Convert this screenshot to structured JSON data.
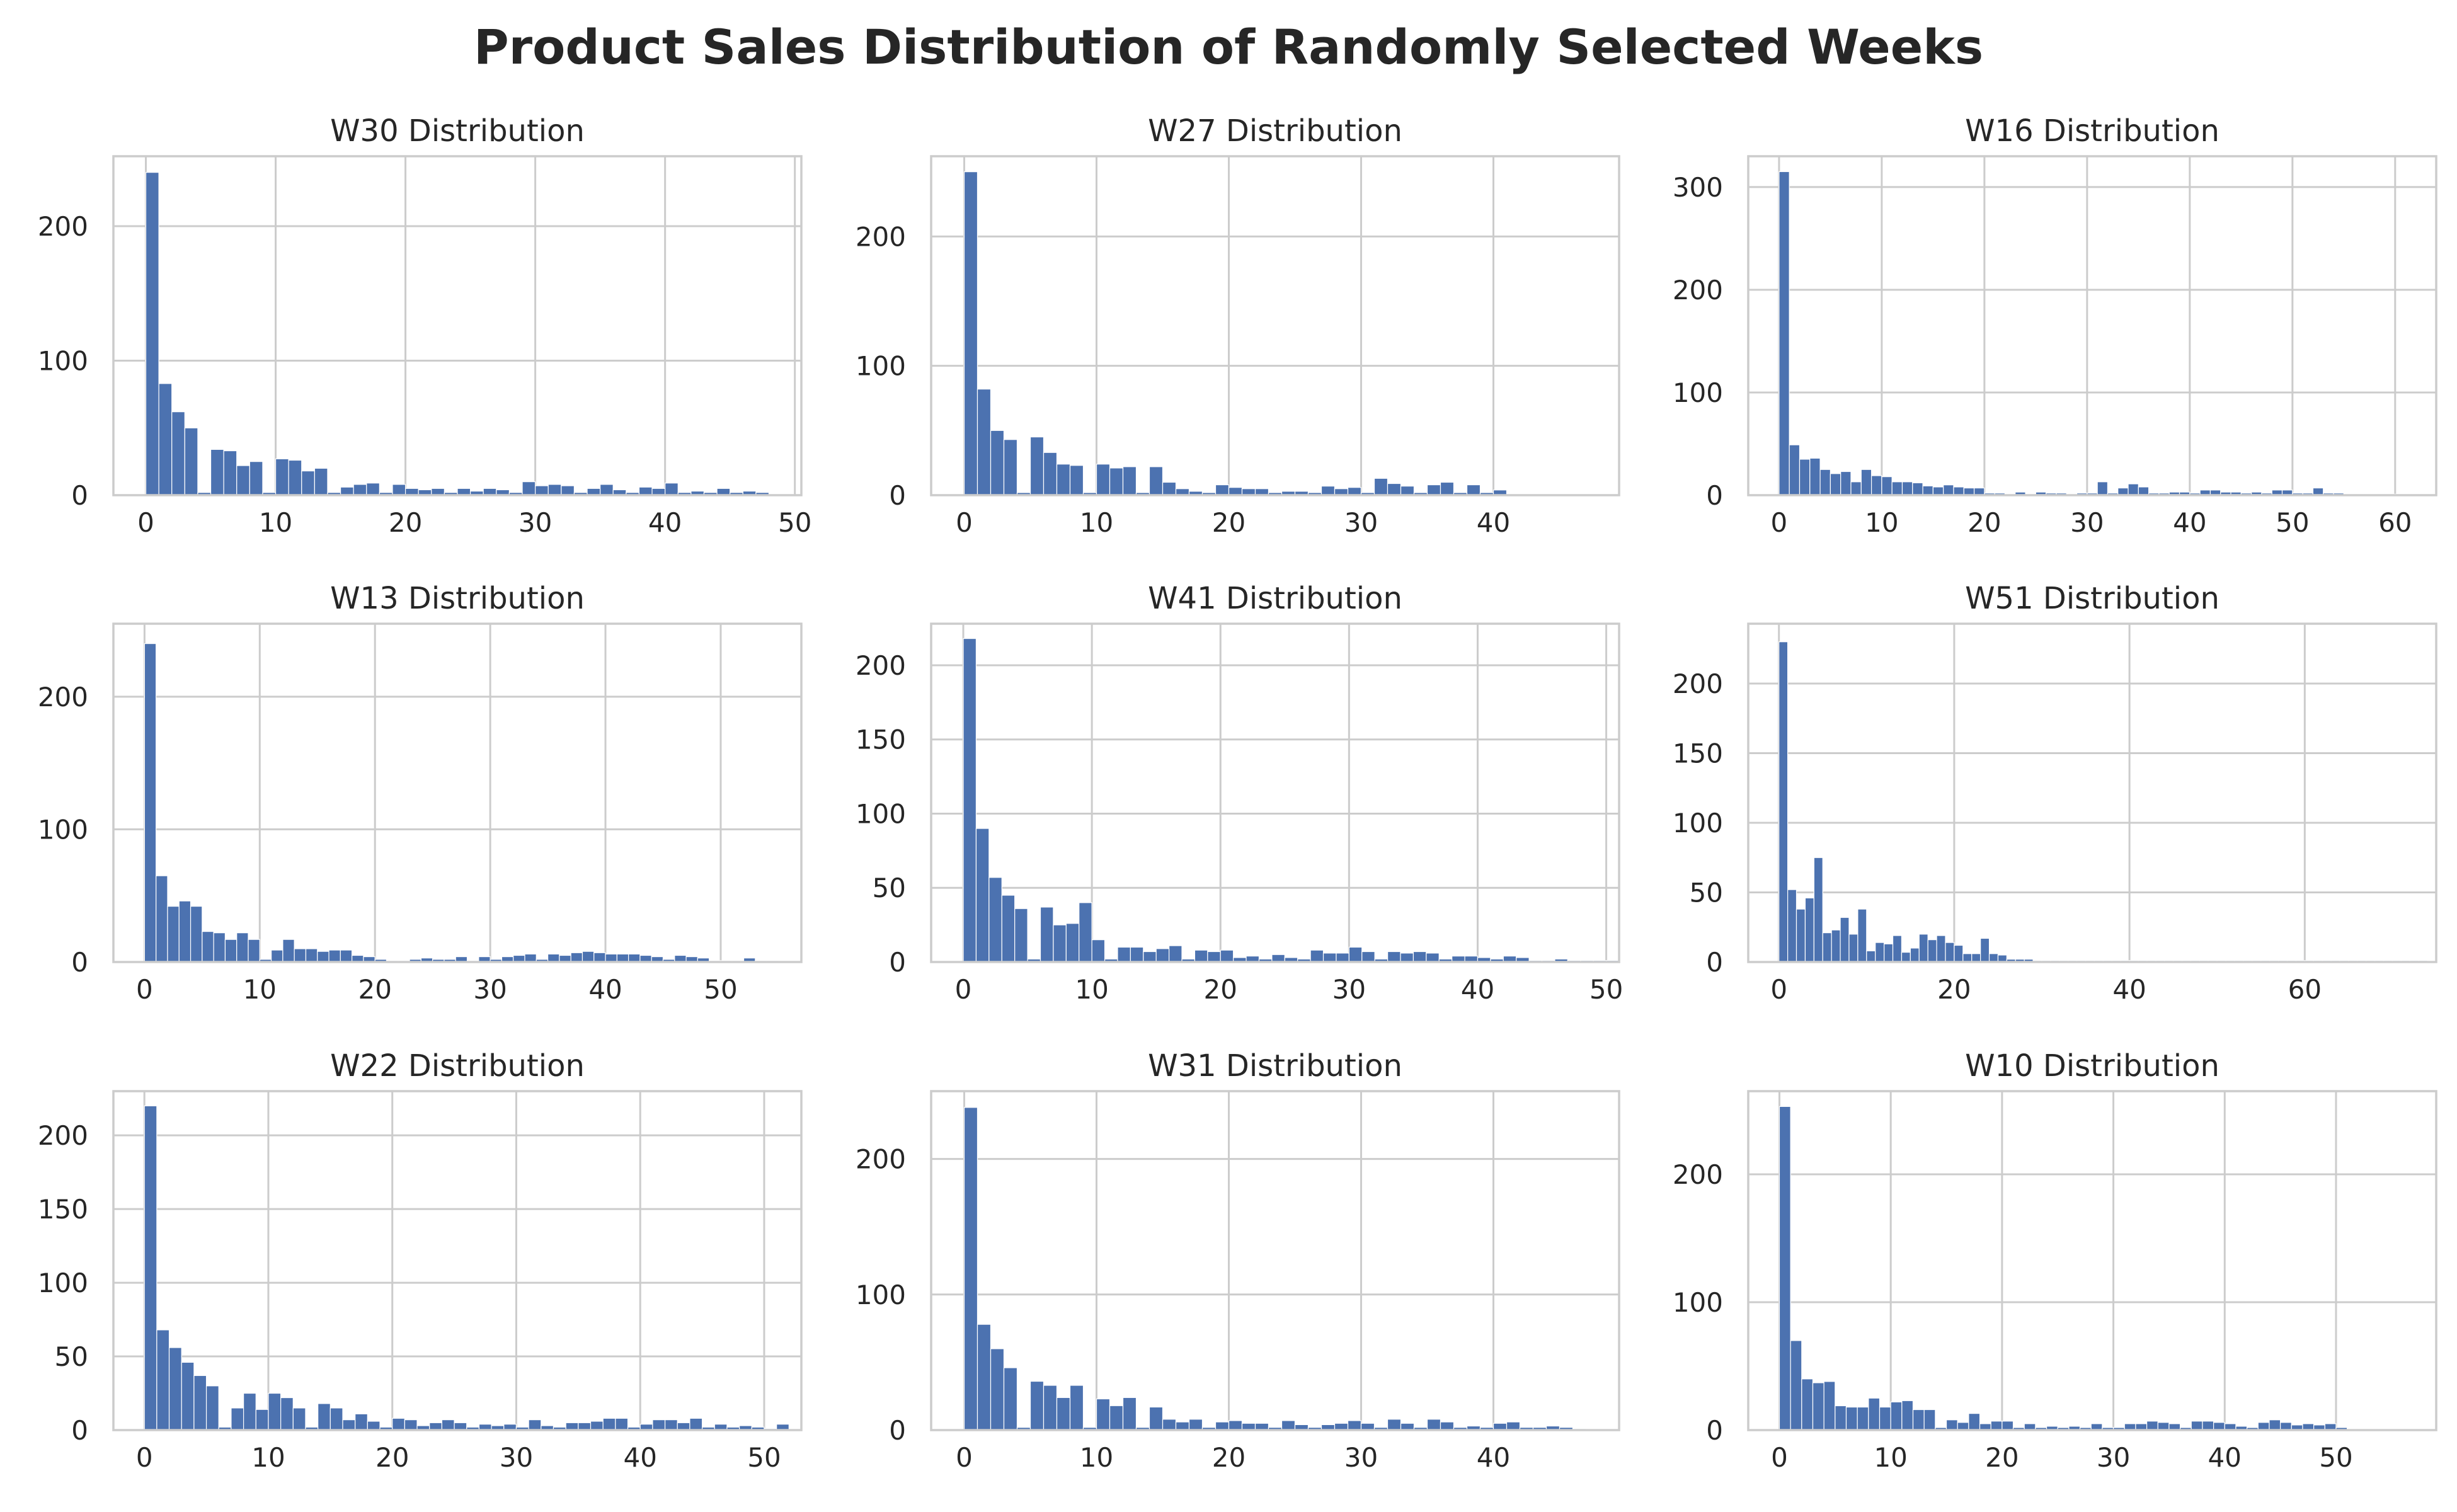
{
  "title": "Product Sales Distribution of Randomly Selected Weeks",
  "colors": {
    "bar": "#4c72b0",
    "grid": "#cccccc",
    "text": "#262626",
    "background": "#ffffff"
  },
  "chart_data": [
    {
      "type": "bar",
      "title": "W30 Distribution",
      "xlim": [
        -2.5,
        50.5
      ],
      "ylim": [
        0,
        252
      ],
      "grid": true,
      "xticks": [
        0,
        10,
        20,
        30,
        40,
        50
      ],
      "yticks": [
        0,
        100,
        200
      ],
      "x": [
        0,
        1,
        2,
        3,
        4,
        5,
        6,
        7,
        8,
        9,
        10,
        11,
        12,
        13,
        14,
        15,
        16,
        17,
        18,
        19,
        20,
        21,
        22,
        23,
        24,
        25,
        26,
        27,
        28,
        29,
        30,
        31,
        32,
        33,
        34,
        35,
        36,
        37,
        38,
        39,
        40,
        41,
        42,
        43,
        44,
        45,
        46,
        47
      ],
      "values": [
        240,
        83,
        62,
        50,
        2,
        34,
        33,
        22,
        25,
        2,
        27,
        26,
        18,
        20,
        2,
        6,
        8,
        9,
        2,
        8,
        5,
        4,
        5,
        2,
        5,
        3,
        5,
        4,
        2,
        10,
        7,
        8,
        7,
        2,
        5,
        8,
        4,
        2,
        6,
        5,
        9,
        2,
        3,
        2,
        5,
        2,
        3,
        2
      ]
    },
    {
      "type": "bar",
      "title": "W27 Distribution",
      "xlim": [
        -2.5,
        49.5
      ],
      "ylim": [
        0,
        262
      ],
      "grid": true,
      "xticks": [
        0,
        10,
        20,
        30,
        40
      ],
      "yticks": [
        0,
        100,
        200
      ],
      "x": [
        0,
        1,
        2,
        3,
        4,
        5,
        6,
        7,
        8,
        9,
        10,
        11,
        12,
        13,
        14,
        15,
        16,
        17,
        18,
        19,
        20,
        21,
        22,
        23,
        24,
        25,
        26,
        27,
        28,
        29,
        30,
        31,
        32,
        33,
        34,
        35,
        36,
        37,
        38,
        39,
        40
      ],
      "values": [
        250,
        82,
        50,
        43,
        2,
        45,
        33,
        24,
        23,
        2,
        24,
        21,
        22,
        2,
        22,
        10,
        5,
        3,
        2,
        8,
        6,
        5,
        5,
        2,
        3,
        3,
        2,
        7,
        5,
        6,
        2,
        13,
        9,
        7,
        2,
        8,
        10,
        2,
        8,
        2,
        4
      ]
    },
    {
      "type": "bar",
      "title": "W16 Distribution",
      "xlim": [
        -3,
        64
      ],
      "ylim": [
        0,
        330
      ],
      "grid": true,
      "xticks": [
        0,
        10,
        20,
        30,
        40,
        50,
        60
      ],
      "yticks": [
        0,
        100,
        200,
        300
      ],
      "x": [
        0,
        1,
        2,
        3,
        4,
        5,
        6,
        7,
        8,
        9,
        10,
        11,
        12,
        13,
        14,
        15,
        16,
        17,
        18,
        19,
        20,
        21,
        22,
        23,
        24,
        25,
        26,
        27,
        28,
        29,
        30,
        31,
        32,
        33,
        34,
        35,
        36,
        37,
        38,
        39,
        40,
        41,
        42,
        43,
        44,
        45,
        46,
        47,
        48,
        49,
        50,
        51,
        52,
        53,
        54,
        55,
        56,
        57,
        58,
        59,
        60,
        61
      ],
      "values": [
        315,
        49,
        35,
        36,
        25,
        21,
        23,
        13,
        25,
        19,
        18,
        13,
        13,
        12,
        9,
        8,
        10,
        8,
        7,
        7,
        2,
        2,
        1,
        3,
        1,
        3,
        2,
        2,
        1,
        2,
        2,
        13,
        2,
        7,
        11,
        8,
        2,
        2,
        3,
        3,
        2,
        5,
        5,
        3,
        3,
        2,
        3,
        2,
        5,
        5,
        2,
        2,
        7,
        2,
        2,
        1,
        1,
        1,
        1,
        1,
        1,
        1
      ]
    },
    {
      "type": "bar",
      "title": "W13 Distribution",
      "xlim": [
        -2.7,
        57
      ],
      "ylim": [
        0,
        255
      ],
      "grid": true,
      "xticks": [
        0,
        10,
        20,
        30,
        40,
        50
      ],
      "yticks": [
        0,
        100,
        200
      ],
      "x": [
        0,
        1,
        2,
        3,
        4,
        5,
        6,
        7,
        8,
        9,
        10,
        11,
        12,
        13,
        14,
        15,
        16,
        17,
        18,
        19,
        20,
        21,
        22,
        23,
        24,
        25,
        26,
        27,
        28,
        29,
        30,
        31,
        32,
        33,
        34,
        35,
        36,
        37,
        38,
        39,
        40,
        41,
        42,
        43,
        44,
        45,
        46,
        47,
        48,
        49,
        50,
        51,
        52,
        53,
        54
      ],
      "values": [
        240,
        65,
        42,
        46,
        42,
        23,
        22,
        17,
        22,
        17,
        2,
        9,
        17,
        10,
        10,
        8,
        9,
        9,
        5,
        4,
        2,
        1,
        1,
        2,
        3,
        2,
        2,
        4,
        1,
        4,
        2,
        4,
        5,
        6,
        2,
        6,
        5,
        7,
        8,
        7,
        6,
        6,
        6,
        5,
        4,
        2,
        5,
        4,
        3,
        1,
        1,
        1,
        3,
        1,
        1
      ]
    },
    {
      "type": "bar",
      "title": "W41 Distribution",
      "xlim": [
        -2.5,
        51
      ],
      "ylim": [
        0,
        228
      ],
      "grid": true,
      "xticks": [
        0,
        10,
        20,
        30,
        40,
        50
      ],
      "yticks": [
        0,
        50,
        100,
        150,
        200
      ],
      "x": [
        0,
        1,
        2,
        3,
        4,
        5,
        6,
        7,
        8,
        9,
        10,
        11,
        12,
        13,
        14,
        15,
        16,
        17,
        18,
        19,
        20,
        21,
        22,
        23,
        24,
        25,
        26,
        27,
        28,
        29,
        30,
        31,
        32,
        33,
        34,
        35,
        36,
        37,
        38,
        39,
        40,
        41,
        42,
        43,
        44,
        45,
        46,
        47,
        48,
        49,
        50
      ],
      "values": [
        218,
        90,
        57,
        45,
        36,
        2,
        37,
        25,
        26,
        40,
        15,
        2,
        10,
        10,
        7,
        9,
        11,
        2,
        8,
        7,
        8,
        3,
        4,
        2,
        5,
        3,
        2,
        8,
        6,
        6,
        10,
        7,
        2,
        7,
        6,
        7,
        6,
        2,
        4,
        4,
        3,
        2,
        4,
        3,
        1,
        1,
        2,
        1,
        1,
        1,
        1
      ]
    },
    {
      "type": "bar",
      "title": "W51 Distribution",
      "xlim": [
        -3.5,
        75
      ],
      "ylim": [
        0,
        243
      ],
      "grid": true,
      "xticks": [
        0,
        20,
        40,
        60
      ],
      "yticks": [
        0,
        50,
        100,
        150,
        200
      ],
      "x": [
        0,
        1,
        2,
        3,
        4,
        5,
        6,
        7,
        8,
        9,
        10,
        11,
        12,
        13,
        14,
        15,
        16,
        17,
        18,
        19,
        20,
        21,
        22,
        23,
        24,
        25,
        26,
        27,
        28,
        29,
        30,
        31,
        32,
        33,
        34,
        35,
        36,
        37,
        38,
        39,
        40,
        41,
        42,
        43,
        44,
        45,
        46,
        47,
        48,
        49,
        50,
        51,
        52,
        53,
        54,
        55,
        56,
        57,
        58,
        59,
        60,
        61,
        62,
        63,
        64,
        65,
        66,
        67,
        68,
        69,
        70,
        71,
        72,
        73
      ],
      "values": [
        230,
        52,
        38,
        46,
        75,
        21,
        23,
        32,
        20,
        38,
        8,
        14,
        13,
        19,
        7,
        10,
        20,
        16,
        19,
        14,
        12,
        6,
        6,
        17,
        6,
        5,
        2,
        2,
        2,
        1,
        1,
        1,
        1,
        1,
        1,
        1,
        1,
        1,
        1,
        1,
        1,
        1,
        1,
        1,
        1,
        1,
        1,
        1,
        1,
        1,
        1,
        1,
        1,
        1,
        1,
        1,
        1,
        1,
        1,
        1,
        1,
        1,
        1,
        1,
        1,
        1,
        1,
        1,
        1,
        1,
        1,
        1,
        1,
        1
      ]
    },
    {
      "type": "bar",
      "title": "W22 Distribution",
      "xlim": [
        -2.5,
        53
      ],
      "ylim": [
        0,
        230
      ],
      "grid": true,
      "xticks": [
        0,
        10,
        20,
        30,
        40,
        50
      ],
      "yticks": [
        0,
        50,
        100,
        150,
        200
      ],
      "x": [
        0,
        1,
        2,
        3,
        4,
        5,
        6,
        7,
        8,
        9,
        10,
        11,
        12,
        13,
        14,
        15,
        16,
        17,
        18,
        19,
        20,
        21,
        22,
        23,
        24,
        25,
        26,
        27,
        28,
        29,
        30,
        31,
        32,
        33,
        34,
        35,
        36,
        37,
        38,
        39,
        40,
        41,
        42,
        43,
        44,
        45,
        46,
        47,
        48,
        49,
        50,
        51
      ],
      "values": [
        220,
        68,
        56,
        46,
        37,
        30,
        2,
        15,
        25,
        14,
        25,
        22,
        15,
        2,
        18,
        15,
        7,
        11,
        6,
        2,
        8,
        7,
        3,
        5,
        7,
        5,
        2,
        4,
        3,
        4,
        2,
        7,
        3,
        2,
        5,
        5,
        6,
        8,
        8,
        2,
        4,
        7,
        7,
        5,
        8,
        2,
        4,
        2,
        3,
        2,
        1,
        4
      ]
    },
    {
      "type": "bar",
      "title": "W31 Distribution",
      "xlim": [
        -2.5,
        49.5
      ],
      "ylim": [
        0,
        250
      ],
      "grid": true,
      "xticks": [
        0,
        10,
        20,
        30,
        40
      ],
      "yticks": [
        0,
        100,
        200
      ],
      "x": [
        0,
        1,
        2,
        3,
        4,
        5,
        6,
        7,
        8,
        9,
        10,
        11,
        12,
        13,
        14,
        15,
        16,
        17,
        18,
        19,
        20,
        21,
        22,
        23,
        24,
        25,
        26,
        27,
        28,
        29,
        30,
        31,
        32,
        33,
        34,
        35,
        36,
        37,
        38,
        39,
        40,
        41,
        42,
        43,
        44,
        45,
        46
      ],
      "values": [
        238,
        78,
        60,
        46,
        2,
        36,
        33,
        24,
        33,
        2,
        23,
        18,
        24,
        2,
        17,
        8,
        6,
        8,
        2,
        6,
        7,
        5,
        5,
        2,
        7,
        4,
        2,
        4,
        5,
        7,
        5,
        2,
        8,
        5,
        2,
        8,
        6,
        2,
        3,
        2,
        5,
        6,
        2,
        2,
        3,
        2,
        1
      ]
    },
    {
      "type": "bar",
      "title": "W10 Distribution",
      "xlim": [
        -2.8,
        59
      ],
      "ylim": [
        0,
        265
      ],
      "grid": true,
      "xticks": [
        0,
        10,
        20,
        30,
        40,
        50
      ],
      "yticks": [
        0,
        100,
        200
      ],
      "x": [
        0,
        1,
        2,
        3,
        4,
        5,
        6,
        7,
        8,
        9,
        10,
        11,
        12,
        13,
        14,
        15,
        16,
        17,
        18,
        19,
        20,
        21,
        22,
        23,
        24,
        25,
        26,
        27,
        28,
        29,
        30,
        31,
        32,
        33,
        34,
        35,
        36,
        37,
        38,
        39,
        40,
        41,
        42,
        43,
        44,
        45,
        46,
        47,
        48,
        49,
        50,
        51,
        52,
        53,
        54,
        55,
        56
      ],
      "values": [
        253,
        70,
        40,
        37,
        38,
        19,
        18,
        18,
        25,
        18,
        22,
        23,
        16,
        16,
        2,
        8,
        6,
        13,
        5,
        7,
        7,
        2,
        5,
        2,
        3,
        2,
        3,
        2,
        5,
        2,
        2,
        5,
        5,
        7,
        6,
        5,
        2,
        7,
        7,
        6,
        5,
        3,
        2,
        6,
        8,
        6,
        4,
        5,
        4,
        5,
        2,
        1,
        1,
        1,
        1,
        1,
        1
      ]
    }
  ]
}
